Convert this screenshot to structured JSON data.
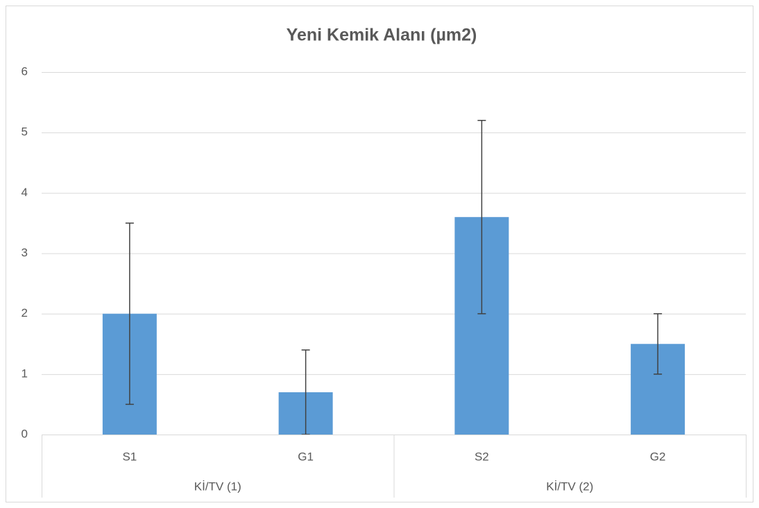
{
  "chart_data": {
    "type": "bar",
    "title": "Yeni Kemik Alanı (µm2)",
    "categories": [
      "S1",
      "G1",
      "S2",
      "G2"
    ],
    "groups": [
      "Kİ/TV (1)",
      "Kİ/TV (2)"
    ],
    "values": [
      2,
      0.7,
      3.6,
      1.5
    ],
    "errors": [
      1.5,
      0.7,
      1.6,
      0.5
    ],
    "color": "#5b9bd5",
    "ylim": [
      0,
      6
    ],
    "yticks": [
      0,
      1,
      2,
      3,
      4,
      5,
      6
    ],
    "grid": true
  }
}
